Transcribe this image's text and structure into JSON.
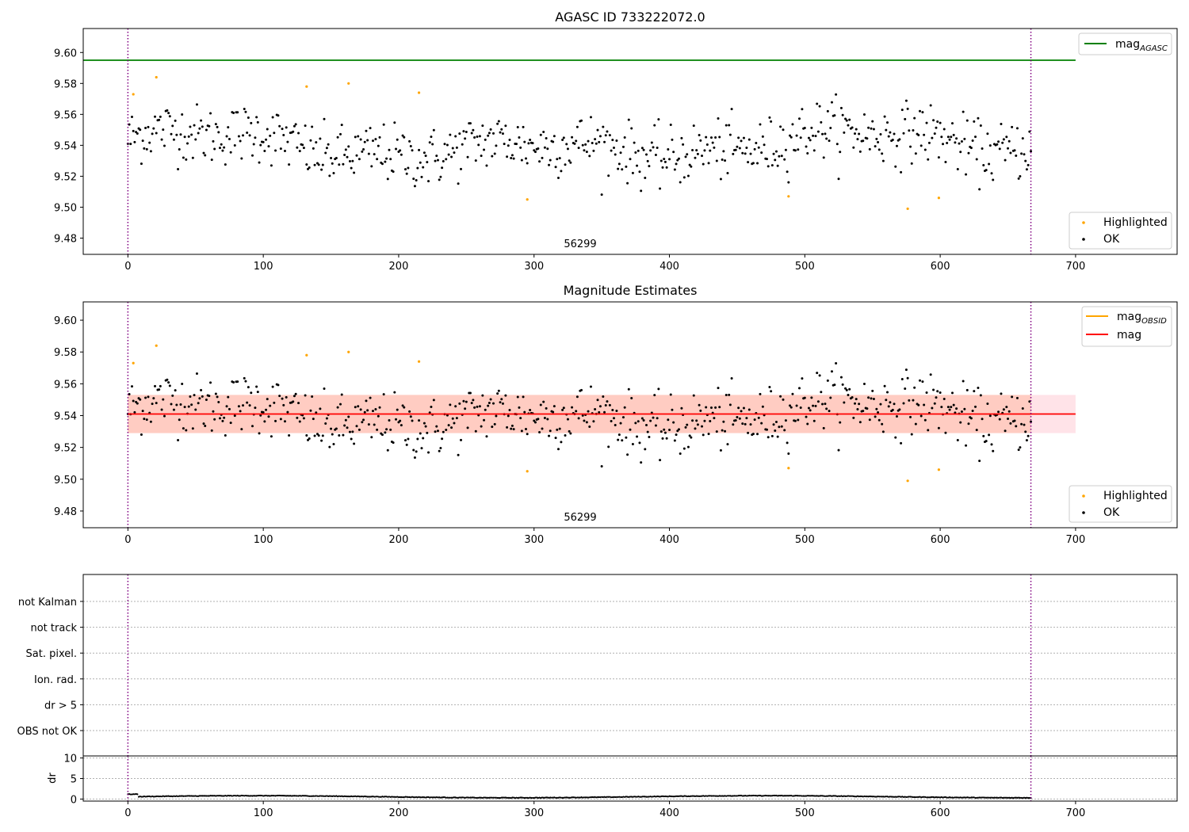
{
  "chart_data": [
    {
      "type": "scatter",
      "title": "AGASC ID 733222072.0",
      "xlim": [
        -33,
        775
      ],
      "ylim": [
        9.4695,
        9.6155
      ],
      "x_ticks": [
        "0",
        "100",
        "200",
        "300",
        "400",
        "500",
        "600",
        "700"
      ],
      "y_ticks": [
        "9.48",
        "9.50",
        "9.52",
        "9.54",
        "9.56",
        "9.58",
        "9.60"
      ],
      "obsid_label": "56299",
      "vlines": [
        0,
        667
      ],
      "vline_color": "#800080",
      "hline": {
        "name": "mag_AGASC",
        "y": 9.595,
        "color": "#008000",
        "xmax": 700
      },
      "legend_upper": [
        {
          "main": "mag",
          "sub": "AGASC",
          "color": "#008000"
        }
      ],
      "legend_lower": [
        {
          "name": "Highlighted",
          "color": "#ffa500"
        },
        {
          "name": "OK",
          "color": "#000000"
        }
      ],
      "highlighted_points": [
        [
          4,
          9.573
        ],
        [
          21,
          9.584
        ],
        [
          132,
          9.578
        ],
        [
          163,
          9.58
        ],
        [
          215,
          9.574
        ],
        [
          295,
          9.505
        ],
        [
          488,
          9.507
        ],
        [
          576,
          9.499
        ],
        [
          599,
          9.506
        ]
      ]
    },
    {
      "type": "scatter",
      "title": "Magnitude Estimates",
      "xlim": [
        -33,
        775
      ],
      "ylim": [
        9.4695,
        9.6115
      ],
      "x_ticks": [
        "0",
        "100",
        "200",
        "300",
        "400",
        "500",
        "600",
        "700"
      ],
      "y_ticks": [
        "9.48",
        "9.50",
        "9.52",
        "9.54",
        "9.56",
        "9.58",
        "9.60"
      ],
      "obsid_label": "56299",
      "vlines": [
        0,
        667
      ],
      "vline_color": "#800080",
      "mag_line": {
        "name": "mag",
        "y": 9.541,
        "color": "#ff0000",
        "xmin": 0,
        "xmax": 700
      },
      "obsid_band": {
        "xmin": 0,
        "xmax": 700,
        "ymin": 9.529,
        "ymax": 9.553,
        "color": "#ffa07a"
      },
      "mag_band": {
        "xmin": 0,
        "xmax": 700,
        "ymin": 9.529,
        "ymax": 9.553,
        "color": "#ffc0cb"
      },
      "legend_upper": [
        {
          "main": "mag",
          "sub": "OBSID",
          "color": "#ffa500"
        },
        {
          "main": "mag",
          "sub": "",
          "color": "#ff0000"
        }
      ],
      "legend_lower": [
        {
          "name": "Highlighted",
          "color": "#ffa500"
        },
        {
          "name": "OK",
          "color": "#000000"
        }
      ],
      "highlighted_points": [
        [
          4,
          9.573
        ],
        [
          21,
          9.584
        ],
        [
          132,
          9.578
        ],
        [
          163,
          9.58
        ],
        [
          215,
          9.574
        ],
        [
          295,
          9.505
        ],
        [
          488,
          9.507
        ],
        [
          576,
          9.499
        ],
        [
          599,
          9.506
        ]
      ]
    },
    {
      "type": "flags",
      "xlim": [
        -33,
        775
      ],
      "flag_labels": [
        "not Kalman",
        "not track",
        "Sat. pixel.",
        "Ion. rad.",
        "dr > 5",
        "OBS not OK"
      ],
      "vlines": [
        0,
        667
      ],
      "vline_color": "#800080"
    },
    {
      "type": "scatter",
      "ylabel": "dr",
      "xlim": [
        -33,
        775
      ],
      "ylim": [
        -0.5,
        10.5
      ],
      "y_ticks": [
        "0",
        "5",
        "10"
      ],
      "x_ticks": [
        "0",
        "100",
        "200",
        "300",
        "400",
        "500",
        "600",
        "700"
      ],
      "vlines": [
        0,
        667
      ],
      "vline_color": "#800080",
      "grid": true
    }
  ]
}
